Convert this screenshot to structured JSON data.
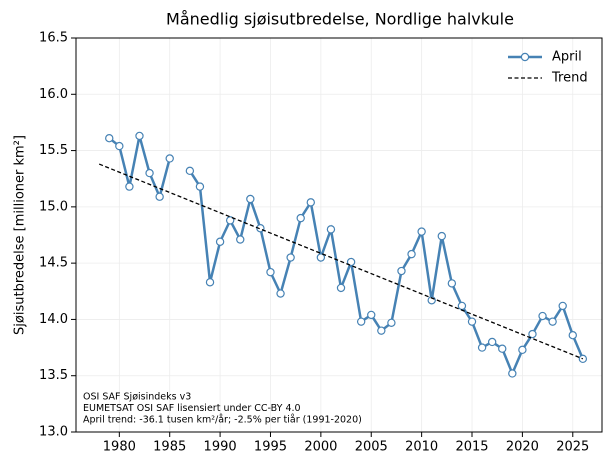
{
  "chart_data": {
    "type": "line",
    "title": "Månedlig sjøisutbredelse, Nordlige halvkule",
    "ylabel": "Sjøisutbredelse [millioner km²]",
    "annotations": [
      "OSI SAF Sjøisindeks v3",
      "EUMETSAT OSI SAF lisensiert under CC-BY 4.0",
      "April trend: -36.1 tusen km²/år; -2.5% per tiår (1991-2020)"
    ],
    "x": [
      1979,
      1980,
      1981,
      1982,
      1983,
      1984,
      1985,
      1986,
      1987,
      1988,
      1989,
      1990,
      1991,
      1992,
      1993,
      1994,
      1995,
      1996,
      1997,
      1998,
      1999,
      2000,
      2001,
      2002,
      2003,
      2004,
      2005,
      2006,
      2007,
      2008,
      2009,
      2010,
      2011,
      2012,
      2013,
      2014,
      2015,
      2016,
      2017,
      2018,
      2019,
      2020,
      2021,
      2022,
      2023,
      2024,
      2025,
      2026
    ],
    "series": [
      {
        "name": "April",
        "color": "#4682b4",
        "style": "solid",
        "marker": true,
        "values": [
          15.61,
          15.54,
          15.18,
          15.63,
          15.3,
          15.09,
          15.43,
          null,
          15.32,
          15.18,
          14.33,
          14.69,
          14.88,
          14.71,
          15.07,
          14.81,
          14.42,
          14.23,
          14.55,
          14.9,
          15.04,
          14.55,
          14.8,
          14.28,
          14.51,
          13.98,
          14.04,
          13.9,
          13.97,
          14.43,
          14.58,
          14.78,
          14.17,
          14.74,
          14.32,
          14.12,
          13.98,
          13.75,
          13.8,
          13.74,
          13.52,
          13.73,
          13.87,
          14.03,
          13.98,
          14.12,
          13.86,
          13.65
        ]
      },
      {
        "name": "Trend",
        "color": "#000000",
        "style": "dashed",
        "marker": false,
        "x": [
          1978,
          2026
        ],
        "values": [
          15.38,
          13.65
        ]
      }
    ],
    "xlim": [
      1975.7,
      2027.9
    ],
    "xticks": [
      1980,
      1985,
      1990,
      1995,
      2000,
      2005,
      2010,
      2015,
      2020,
      2025
    ],
    "ylim": [
      13.0,
      16.5
    ],
    "yticks": [
      {
        "value": 13.0,
        "label": "13.0"
      },
      {
        "value": 13.5,
        "label": "13.5"
      },
      {
        "value": 14.0,
        "label": "14.0"
      },
      {
        "value": 14.5,
        "label": "14.5"
      },
      {
        "value": 15.0,
        "label": "15.0"
      },
      {
        "value": 15.5,
        "label": "15.5"
      },
      {
        "value": 16.0,
        "label": "16.0"
      },
      {
        "value": 16.5,
        "label": "16.5"
      }
    ],
    "grid": true,
    "legend": "upper right"
  }
}
